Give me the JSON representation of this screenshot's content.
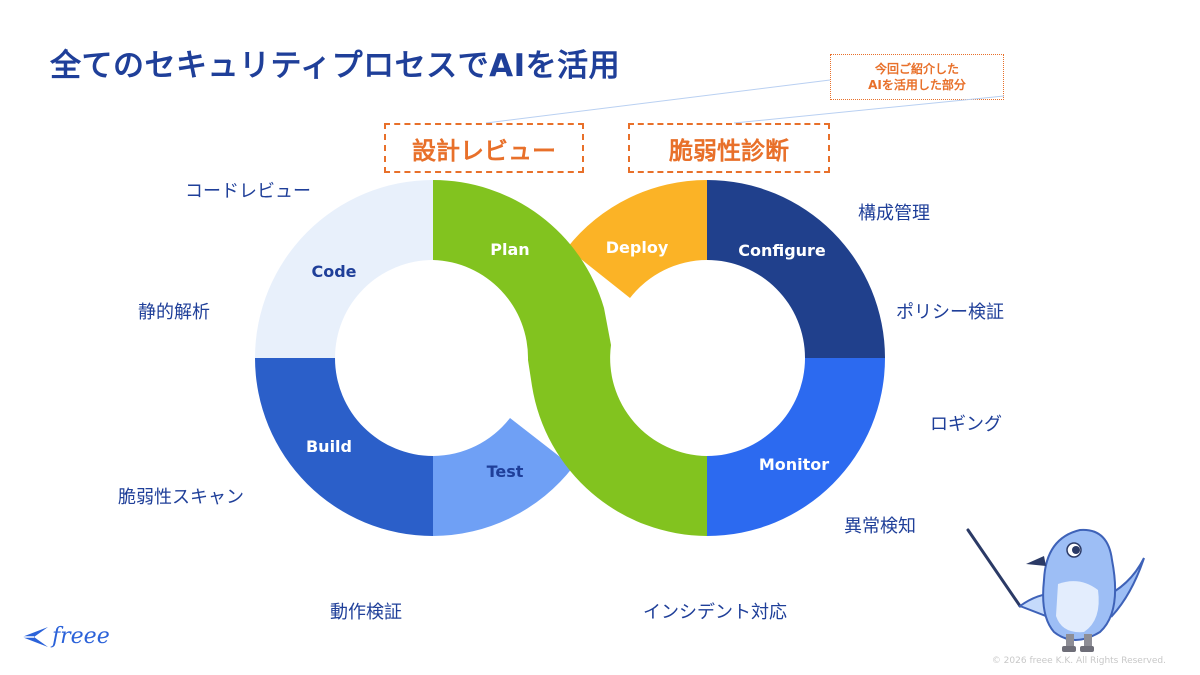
{
  "title": "全てのセキュリティプロセスでAIを活用",
  "callout": {
    "line1": "今回ご紹介した",
    "line2": "AIを活用した部分",
    "color": "#e8702a"
  },
  "highlights": {
    "design_review": "設計レビュー",
    "vulnerability_assessment": "脆弱性診断"
  },
  "segments": {
    "code": {
      "label": "Code",
      "color": "#e8f0fb",
      "text_color": "#1f3f99"
    },
    "build": {
      "label": "Build",
      "color": "#2b5fc9",
      "text_color": "#ffffff"
    },
    "test": {
      "label": "Test",
      "color": "#6fa0f5",
      "text_color": "#1f3f99"
    },
    "plan": {
      "label": "Plan",
      "color": "#82c31f",
      "text_color": "#ffffff"
    },
    "deploy": {
      "label": "Deploy",
      "color": "#fbb326",
      "text_color": "#ffffff"
    },
    "configure": {
      "label": "Configure",
      "color": "#20408c",
      "text_color": "#ffffff"
    },
    "monitor": {
      "label": "Monitor",
      "color": "#2c6af0",
      "text_color": "#ffffff"
    }
  },
  "activities": {
    "code_review": "コードレビュー",
    "static_analysis": "静的解析",
    "vuln_scan": "脆弱性スキャン",
    "functional_test": "動作検証",
    "config_management": "構成管理",
    "policy_verification": "ポリシー検証",
    "logging": "ロギング",
    "anomaly_detection": "異常検知",
    "incident_response": "インシデント対応"
  },
  "footer": {
    "logo_text": "freee",
    "copyright": "© 2026 freee K.K. All Rights Reserved."
  },
  "icons": {
    "logo": "freee-bird-logo-icon",
    "mascot": "bird-mascot-with-pointer-icon"
  }
}
